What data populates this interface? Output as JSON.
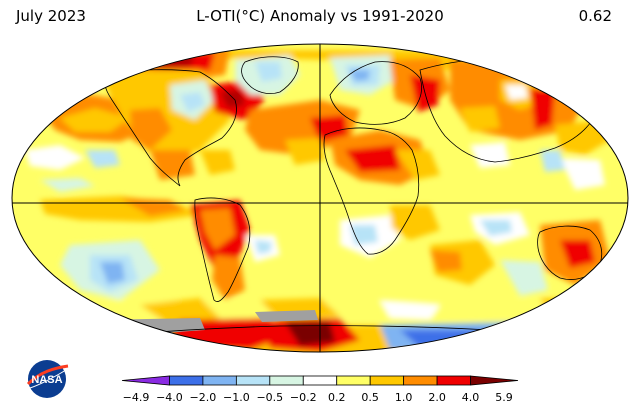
{
  "header": {
    "date": "July 2023",
    "title": "L-OTI(°C) Anomaly vs 1991-2020",
    "global_mean": "0.62"
  },
  "logo": {
    "text": "NASA"
  },
  "legend": {
    "ticks": [
      "−4.9",
      "−4.0",
      "−2.0",
      "−1.0",
      "−0.5",
      "−0.2",
      "0.2",
      "0.5",
      "1.0",
      "2.0",
      "4.0",
      "5.9"
    ],
    "colors": [
      "#8a2be2",
      "#3c6fe8",
      "#7fb4f2",
      "#b7e3f7",
      "#d7f5e3",
      "#ffffff",
      "#ffff66",
      "#ffc800",
      "#ff8c00",
      "#f00000",
      "#7a0000"
    ]
  },
  "map": {
    "projection": "Robinson",
    "missing_color": "#a0a0a0"
  }
}
